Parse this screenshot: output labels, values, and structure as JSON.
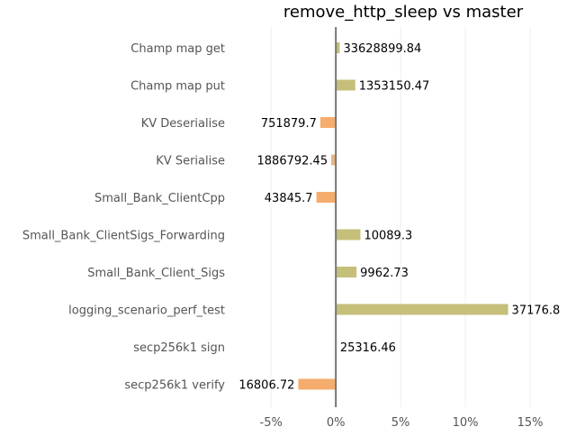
{
  "chart_data": {
    "type": "bar",
    "orientation": "horizontal",
    "title": "remove_http_sleep vs master",
    "xlim": [
      -8,
      17.5
    ],
    "x_ticks": [
      {
        "value": -5,
        "label": "-5%"
      },
      {
        "value": 0,
        "label": "0%"
      },
      {
        "value": 5,
        "label": "5%"
      },
      {
        "value": 10,
        "label": "10%"
      },
      {
        "value": 15,
        "label": "15%"
      }
    ],
    "grid": true,
    "categories": [
      "Champ map get",
      "Champ map put",
      "KV Deserialise",
      "KV Serialise",
      "Small_Bank_ClientCpp",
      "Small_Bank_ClientSigs_Forwarding",
      "Small_Bank_Client_Sigs",
      "logging_scenario_perf_test",
      "secp256k1 sign",
      "secp256k1 verify"
    ],
    "values": [
      0.3,
      1.5,
      -1.2,
      -0.35,
      -1.5,
      1.9,
      1.6,
      13.3,
      0.05,
      -2.9
    ],
    "data_labels": [
      "33628899.84",
      "1353150.47",
      "751879.7",
      "1886792.45",
      "43845.7",
      "10089.3",
      "9962.73",
      "37176.8",
      "25316.46",
      "16806.72"
    ],
    "colors": {
      "positive": "#c5bf7a",
      "negative": "#f5ad6e",
      "negative_small": "#e8b580",
      "zero_line": "#777777",
      "grid": "#eeeeee",
      "tick_text": "#555555",
      "title_text": "#000000"
    }
  }
}
